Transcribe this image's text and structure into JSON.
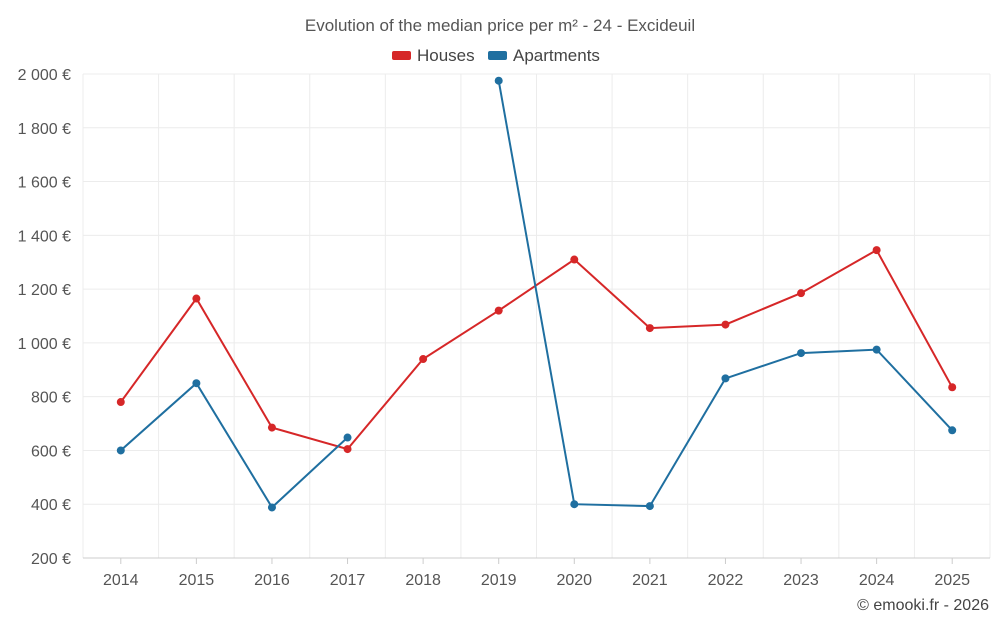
{
  "chart_data": {
    "type": "line",
    "title": "Evolution of the median price per m² - 24 - Excideuil",
    "categories": [
      "2014",
      "2015",
      "2016",
      "2017",
      "2018",
      "2019",
      "2020",
      "2021",
      "2022",
      "2023",
      "2024",
      "2025"
    ],
    "series": [
      {
        "name": "Houses",
        "color": "#d62728",
        "values": [
          780,
          1165,
          685,
          605,
          940,
          1120,
          1310,
          1055,
          1068,
          1185,
          1345,
          835
        ]
      },
      {
        "name": "Apartments",
        "color": "#1f6fa0",
        "values": [
          600,
          850,
          388,
          648,
          null,
          1975,
          400,
          393,
          868,
          962,
          975,
          675
        ]
      }
    ],
    "ylim": [
      200,
      2000
    ],
    "yticks": [
      200,
      400,
      600,
      800,
      1000,
      1200,
      1400,
      1600,
      1800,
      2000
    ],
    "ytick_labels": [
      "200 €",
      "400 €",
      "600 €",
      "800 €",
      "1 000 €",
      "1 200 €",
      "1 400 €",
      "1 600 €",
      "1 800 €",
      "2 000 €"
    ],
    "grid": true,
    "legend": "top-center"
  },
  "credit": "© emooki.fr - 2026"
}
